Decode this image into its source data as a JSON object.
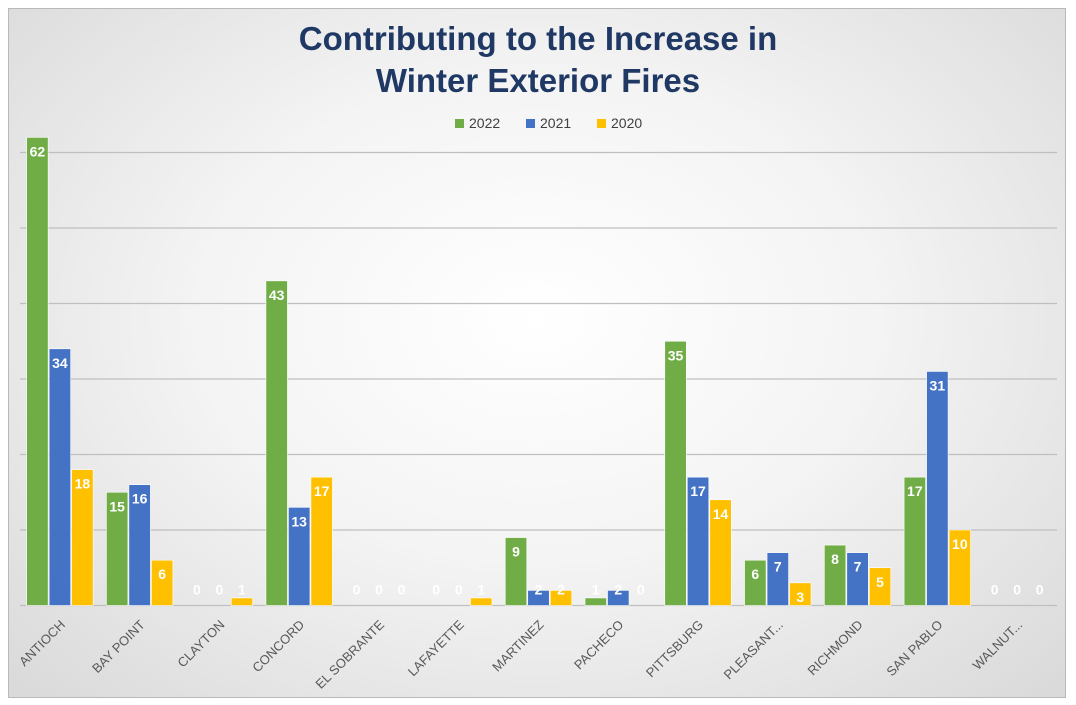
{
  "chart_data": {
    "type": "bar",
    "title_line1": "Contributing to the Increase in",
    "title_line2": "Winter Exterior Fires",
    "categories": [
      "ANTIOCH",
      "BAY POINT",
      "CLAYTON",
      "CONCORD",
      "EL SOBRANTE",
      "LAFAYETTE",
      "MARTINEZ",
      "PACHECO",
      "PITTSBURG",
      "PLEASANT...",
      "RICHMOND",
      "SAN PABLO",
      "WALNUT..."
    ],
    "series": [
      {
        "name": "2022",
        "color": "#70ad47",
        "values": [
          62,
          15,
          0,
          43,
          0,
          0,
          9,
          1,
          35,
          6,
          8,
          17,
          0
        ]
      },
      {
        "name": "2021",
        "color": "#4472c4",
        "values": [
          34,
          16,
          0,
          13,
          0,
          0,
          2,
          2,
          17,
          7,
          7,
          31,
          0
        ]
      },
      {
        "name": "2020",
        "color": "#ffc000",
        "values": [
          18,
          6,
          1,
          17,
          0,
          1,
          2,
          0,
          14,
          3,
          5,
          10,
          0
        ]
      }
    ],
    "ylim": [
      0,
      60
    ],
    "y_gridlines": [
      10,
      20,
      30,
      40,
      50,
      60
    ],
    "y_tick_labels_shown": false,
    "grid": true,
    "legend_position": "top",
    "data_labels": true
  }
}
